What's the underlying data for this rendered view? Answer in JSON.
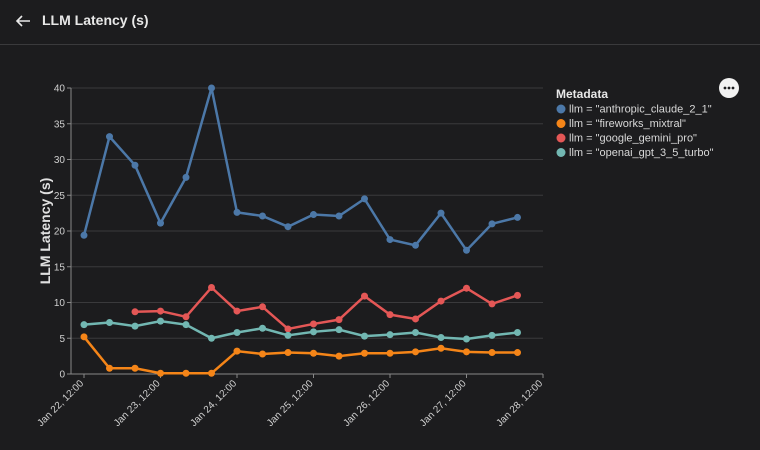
{
  "header": {
    "title": "LLM Latency (s)"
  },
  "chart_data": {
    "type": "line",
    "y_label": "LLM Latency (s)",
    "legend_title": "Metadata",
    "categories": [
      "Jan 22, 12:00",
      null,
      null,
      "Jan 23, 12:00",
      null,
      null,
      "Jan 24, 12:00",
      null,
      null,
      "Jan 25, 12:00",
      null,
      null,
      "Jan 26, 12:00",
      null,
      null,
      "Jan 27, 12:00",
      null,
      null,
      "Jan 28, 12:00"
    ],
    "ylim": [
      0,
      40
    ],
    "yticks": [
      0,
      5,
      10,
      15,
      20,
      25,
      30,
      35,
      40
    ],
    "grid": true,
    "series": [
      {
        "name": "llm = \"anthropic_claude_2_1\"",
        "color": "#4c78a8",
        "values": [
          19.4,
          33.2,
          29.2,
          21.1,
          27.5,
          40,
          22.6,
          22.1,
          20.6,
          22.3,
          22.1,
          24.5,
          18.8,
          18.0,
          22.5,
          17.3,
          21.0,
          21.9,
          null
        ]
      },
      {
        "name": "llm = \"fireworks_mixtral\"",
        "color": "#f58518",
        "values": [
          5.2,
          0.8,
          0.8,
          0.1,
          0.1,
          0.1,
          3.2,
          2.8,
          3.0,
          2.9,
          2.5,
          2.9,
          2.9,
          3.1,
          3.6,
          3.1,
          3.0,
          3.0,
          null
        ]
      },
      {
        "name": "llm = \"google_gemini_pro\"",
        "color": "#e45756",
        "values": [
          null,
          null,
          8.7,
          8.8,
          8.0,
          12.1,
          8.8,
          9.4,
          6.3,
          7.0,
          7.6,
          10.9,
          8.3,
          7.7,
          10.2,
          12.0,
          9.8,
          11.0,
          null
        ]
      },
      {
        "name": "llm = \"openai_gpt_3_5_turbo\"",
        "color": "#72b7b2",
        "values": [
          6.9,
          7.2,
          6.7,
          7.4,
          6.9,
          5.0,
          5.8,
          6.4,
          5.4,
          5.9,
          6.2,
          5.3,
          5.5,
          5.8,
          5.1,
          4.9,
          5.4,
          5.8,
          null
        ]
      }
    ]
  }
}
